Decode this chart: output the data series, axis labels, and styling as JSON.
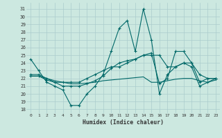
{
  "title": "",
  "xlabel": "Humidex (Indice chaleur)",
  "bg_color": "#cce8e0",
  "grid_color": "#aacccc",
  "line_color": "#006868",
  "xlim": [
    -0.5,
    23.5
  ],
  "ylim": [
    17.5,
    31.8
  ],
  "yticks": [
    18,
    19,
    20,
    21,
    22,
    23,
    24,
    25,
    26,
    27,
    28,
    29,
    30,
    31
  ],
  "xticks": [
    0,
    1,
    2,
    3,
    4,
    5,
    6,
    7,
    8,
    9,
    10,
    11,
    12,
    13,
    14,
    15,
    16,
    17,
    18,
    19,
    20,
    21,
    22,
    23
  ],
  "line1_x": [
    0,
    1,
    2,
    3,
    4,
    5,
    6,
    7,
    8,
    9,
    10,
    11,
    12,
    13,
    14,
    15,
    16,
    17,
    18,
    19,
    20,
    21,
    22,
    23
  ],
  "line1_y": [
    24.5,
    23.0,
    21.5,
    21.0,
    20.5,
    18.5,
    18.5,
    20.0,
    21.0,
    22.5,
    25.5,
    28.5,
    29.5,
    25.5,
    31.0,
    27.0,
    20.0,
    22.5,
    23.5,
    24.0,
    23.5,
    21.0,
    21.5,
    22.0
  ],
  "line2_x": [
    0,
    1,
    2,
    3,
    4,
    5,
    6,
    7,
    8,
    9,
    10,
    11,
    12,
    13,
    14,
    15,
    16,
    17,
    18,
    19,
    20,
    21,
    22,
    23
  ],
  "line2_y": [
    22.5,
    22.5,
    22.0,
    21.5,
    21.5,
    21.5,
    21.5,
    22.0,
    22.5,
    23.0,
    23.5,
    23.5,
    24.0,
    24.5,
    25.0,
    25.0,
    25.0,
    23.5,
    23.5,
    24.0,
    24.0,
    22.5,
    22.0,
    22.0
  ],
  "line3_x": [
    0,
    1,
    2,
    3,
    4,
    5,
    6,
    7,
    8,
    9,
    10,
    11,
    12,
    13,
    14,
    15,
    16,
    17,
    18,
    19,
    20,
    21,
    22,
    23
  ],
  "line3_y": [
    22.3,
    22.3,
    22.0,
    21.7,
    21.5,
    21.3,
    21.3,
    21.4,
    21.5,
    21.7,
    21.8,
    21.9,
    22.0,
    22.1,
    22.2,
    21.5,
    21.5,
    21.7,
    21.9,
    22.0,
    22.0,
    21.7,
    21.5,
    21.8
  ],
  "line4_x": [
    0,
    1,
    2,
    3,
    4,
    5,
    6,
    7,
    8,
    9,
    10,
    11,
    12,
    13,
    14,
    15,
    16,
    17,
    18,
    19,
    20,
    21,
    22,
    23
  ],
  "line4_y": [
    22.3,
    22.3,
    21.8,
    21.5,
    21.0,
    21.0,
    21.0,
    21.3,
    21.7,
    22.3,
    23.3,
    24.0,
    24.3,
    24.5,
    25.0,
    25.3,
    21.3,
    22.0,
    25.5,
    25.5,
    24.0,
    21.5,
    22.0,
    22.0
  ]
}
